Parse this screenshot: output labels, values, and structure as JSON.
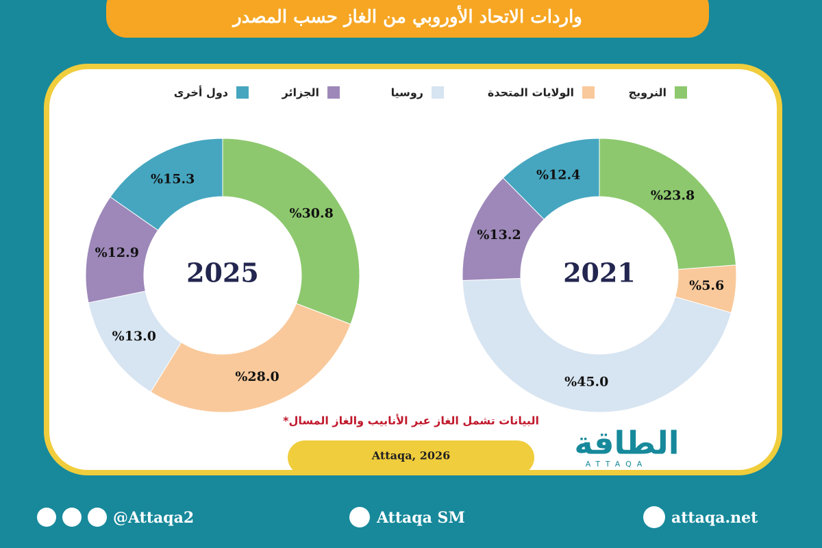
{
  "title": "واردات الاتحاد الأوروبي من الغاز حسب المصدر",
  "note": "*البيانات تشمل الغاز عبر الأنابيب والغاز المسال",
  "source": "Attaqa, 2026",
  "logo": {
    "name": "الطاقة",
    "latin": "ATTAQA"
  },
  "footer": {
    "social": "@Attaqa2",
    "youtube": "Attaqa SM",
    "site": "attaqa.net"
  },
  "chart_data": [
    {
      "type": "pie",
      "title": "2021",
      "categories": [
        "النرويج",
        "الولايات المتحدة",
        "روسيا",
        "الجزائر",
        "دول أخرى"
      ],
      "values": [
        23.8,
        5.6,
        45.0,
        13.2,
        12.4
      ],
      "value_labels": [
        "%23.8",
        "%5.6",
        "%45.0",
        "%13.2",
        "%12.4"
      ],
      "colors": [
        "#8dc86e",
        "#f9c99b",
        "#d7e4f1",
        "#9d88b9",
        "#46a6c0"
      ]
    },
    {
      "type": "pie",
      "title": "2025",
      "categories": [
        "النرويج",
        "الولايات المتحدة",
        "روسيا",
        "الجزائر",
        "دول أخرى"
      ],
      "values": [
        30.8,
        28.0,
        13.0,
        12.9,
        15.3
      ],
      "value_labels": [
        "%30.8",
        "%28.0",
        "%13.0",
        "%12.9",
        "%15.3"
      ],
      "colors": [
        "#8dc86e",
        "#f9c99b",
        "#d7e4f1",
        "#9d88b9",
        "#46a6c0"
      ]
    }
  ]
}
